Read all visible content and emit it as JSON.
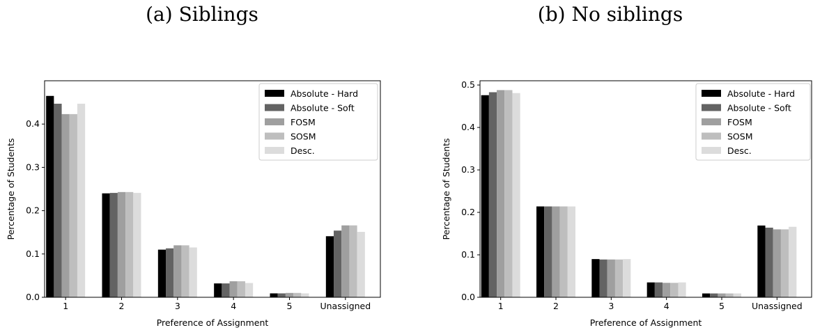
{
  "panels": [
    {
      "caption": "(a) Siblings"
    },
    {
      "caption": "(b) No siblings"
    }
  ],
  "chart_data": [
    {
      "type": "bar",
      "title": "",
      "xlabel": "Preference of Assignment",
      "ylabel": "Percentage of Students",
      "categories": [
        "1",
        "2",
        "3",
        "4",
        "5",
        "Unassigned"
      ],
      "ylim": [
        0,
        0.5
      ],
      "yticks": [
        "0.0",
        "0.1",
        "0.2",
        "0.3",
        "0.4"
      ],
      "legend_position": "top-right",
      "series": [
        {
          "name": "Absolute - Hard",
          "color": "#000000",
          "values": [
            0.465,
            0.24,
            0.11,
            0.032,
            0.009,
            0.141
          ]
        },
        {
          "name": "Absolute - Soft",
          "color": "#636363",
          "values": [
            0.447,
            0.241,
            0.113,
            0.032,
            0.009,
            0.154
          ]
        },
        {
          "name": "FOSM",
          "color": "#9f9f9f",
          "values": [
            0.423,
            0.243,
            0.12,
            0.037,
            0.01,
            0.166
          ]
        },
        {
          "name": "SOSM",
          "color": "#bebebe",
          "values": [
            0.423,
            0.243,
            0.12,
            0.037,
            0.01,
            0.166
          ]
        },
        {
          "name": "Desc.",
          "color": "#dcdcdc",
          "values": [
            0.447,
            0.241,
            0.115,
            0.033,
            0.009,
            0.151
          ]
        }
      ]
    },
    {
      "type": "bar",
      "title": "",
      "xlabel": "Preference of Assignment",
      "ylabel": "Percentage of Students",
      "categories": [
        "1",
        "2",
        "3",
        "4",
        "5",
        "Unassigned"
      ],
      "ylim": [
        0,
        0.51
      ],
      "yticks": [
        "0.0",
        "0.1",
        "0.2",
        "0.3",
        "0.4",
        "0.5"
      ],
      "legend_position": "top-right",
      "series": [
        {
          "name": "Absolute - Hard",
          "color": "#000000",
          "values": [
            0.476,
            0.214,
            0.09,
            0.035,
            0.009,
            0.169
          ]
        },
        {
          "name": "Absolute - Soft",
          "color": "#636363",
          "values": [
            0.483,
            0.214,
            0.089,
            0.035,
            0.009,
            0.164
          ]
        },
        {
          "name": "FOSM",
          "color": "#9f9f9f",
          "values": [
            0.488,
            0.214,
            0.089,
            0.034,
            0.009,
            0.16
          ]
        },
        {
          "name": "SOSM",
          "color": "#bebebe",
          "values": [
            0.488,
            0.214,
            0.089,
            0.034,
            0.009,
            0.16
          ]
        },
        {
          "name": "Desc.",
          "color": "#dcdcdc",
          "values": [
            0.481,
            0.214,
            0.09,
            0.035,
            0.009,
            0.166
          ]
        }
      ]
    }
  ]
}
